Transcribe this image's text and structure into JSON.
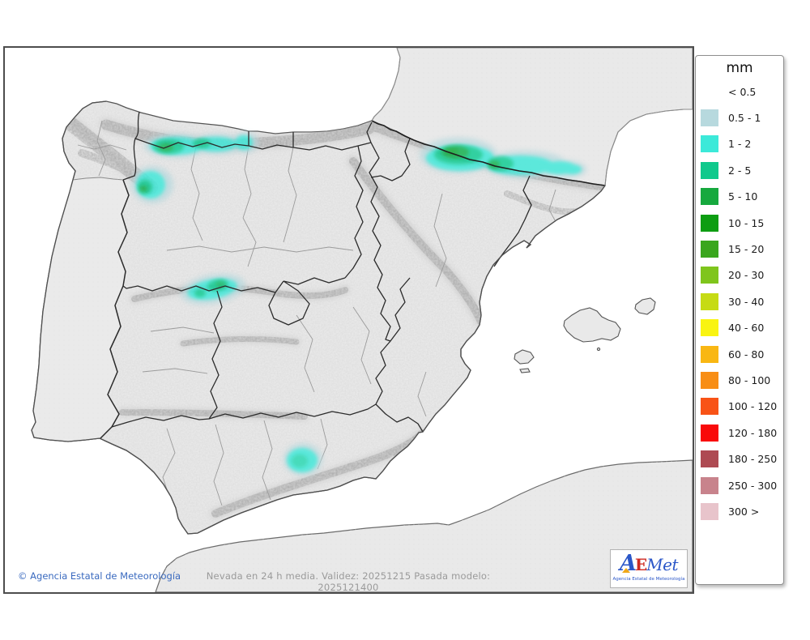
{
  "legend": {
    "title": "mm",
    "entries": [
      {
        "label": "< 0.5",
        "color": null
      },
      {
        "label": "0.5 - 1",
        "color": "#b7d9de"
      },
      {
        "label": "1 - 2",
        "color": "#3ce9d9"
      },
      {
        "label": "2 - 5",
        "color": "#0fc98c"
      },
      {
        "label": "5 - 10",
        "color": "#16a93e"
      },
      {
        "label": "10 - 15",
        "color": "#0d9d12"
      },
      {
        "label": "15 - 20",
        "color": "#3aa61d"
      },
      {
        "label": "20 - 30",
        "color": "#7fc51c"
      },
      {
        "label": "30 - 40",
        "color": "#c6db14"
      },
      {
        "label": "40 - 60",
        "color": "#f9f411"
      },
      {
        "label": "60 - 80",
        "color": "#f9b713"
      },
      {
        "label": "80 - 100",
        "color": "#f88e15"
      },
      {
        "label": "100 - 120",
        "color": "#f85316"
      },
      {
        "label": "120 - 180",
        "color": "#f90a0a"
      },
      {
        "label": "180 - 250",
        "color": "#ae4a52"
      },
      {
        "label": "250 - 300",
        "color": "#c8838c"
      },
      {
        "label": "300 >",
        "color": "#e8c4cb"
      }
    ]
  },
  "footer": {
    "copyright": "© Agencia Estatal de Meteorología",
    "model_info": "Nevada en 24 h media. Validez: 20251215 Pasada modelo: 2025121400"
  },
  "logo": {
    "part_a": "A",
    "part_e": "E",
    "part_met": "Met",
    "subtitle": "Agencia Estatal de Meteorología"
  },
  "map": {
    "variable": "Nevada en 24 h media",
    "validity_date": "20251215",
    "model_run": "2025121400",
    "unit": "mm",
    "snow_areas": [
      {
        "location": "Cantabrian Mountains (Asturias/León border)",
        "range_mm": "1 - 10"
      },
      {
        "location": "Sanabria / NW León mountains",
        "range_mm": "1 - 10"
      },
      {
        "location": "Pyrenees (Navarra, Huesca, Lleida)",
        "range_mm": "1 - 10"
      },
      {
        "location": "Sistema Central (Gredos)",
        "range_mm": "1 - 5"
      },
      {
        "location": "Sierra Nevada (Granada)",
        "range_mm": "1 - 2"
      }
    ]
  },
  "colors": {
    "land": "#e9e9e9",
    "sea": "#ffffff",
    "community_border": "#2b2b2b",
    "province_border": "#9b9b9b",
    "coastline": "#5a5a5a",
    "copyright_blue": "#3a6abf",
    "model_gray": "#9a9a9a",
    "logo_blue": "#2b57c8",
    "logo_red": "#cf2a21"
  }
}
